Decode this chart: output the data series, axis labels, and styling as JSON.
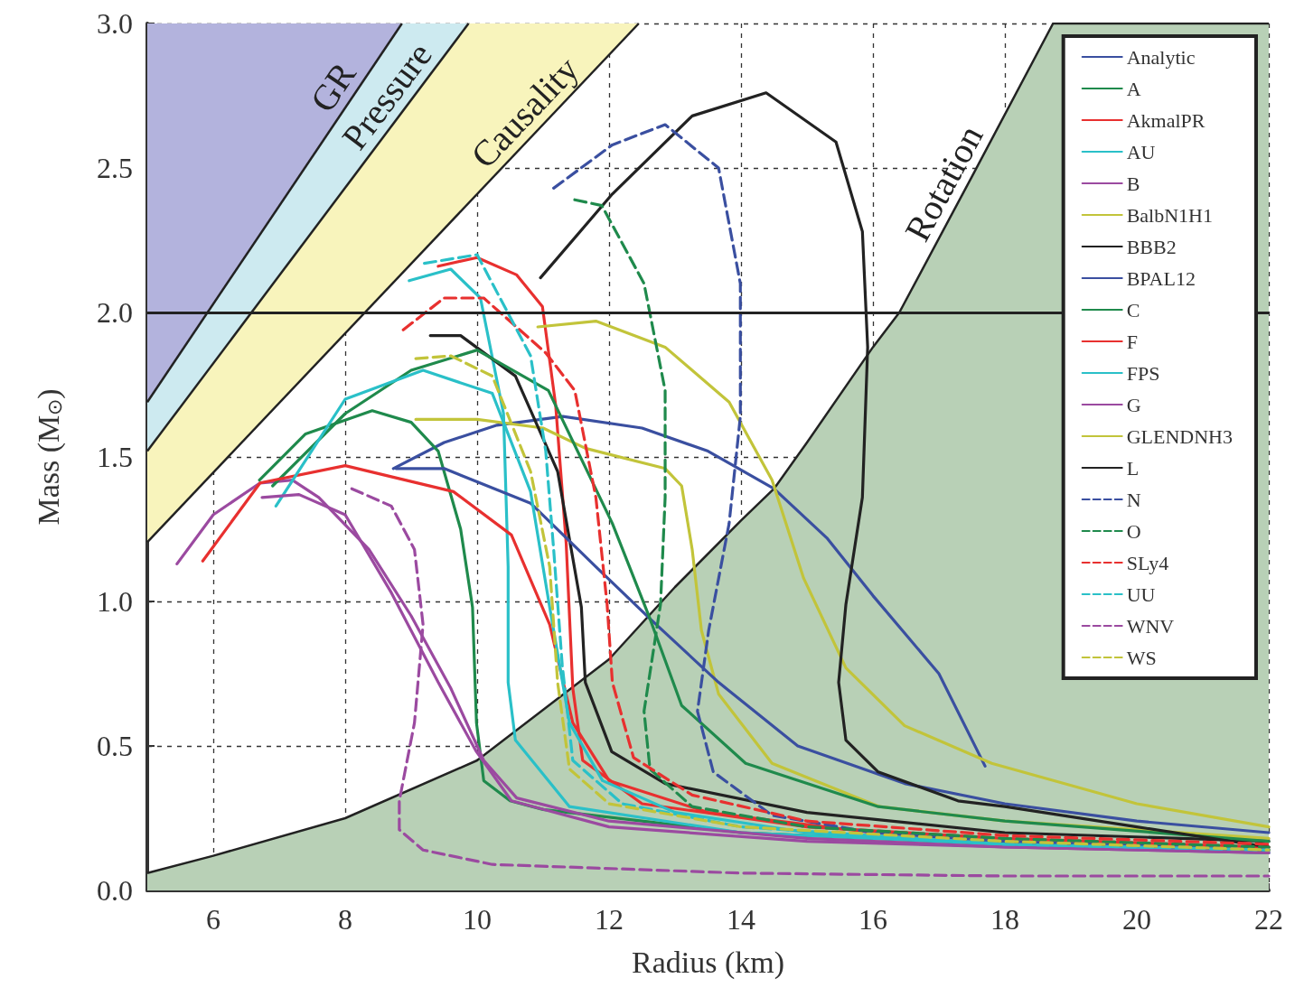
{
  "chart_data": {
    "type": "line",
    "xlabel": "Radius (km)",
    "ylabel": "Mass (M$_{⊙}$)",
    "xlim": [
      5,
      22
    ],
    "xticks": [
      6,
      8,
      10,
      12,
      14,
      16,
      18,
      20,
      22
    ],
    "ylim": [
      0,
      3
    ],
    "yticks": [
      {
        "value": 0,
        "label": "0.0"
      },
      {
        "value": 0.5,
        "label": "0.5"
      },
      {
        "value": 1,
        "label": "1.0"
      },
      {
        "value": 1.5,
        "label": "1.5"
      },
      {
        "value": 2,
        "label": "2.0"
      },
      {
        "value": 2.5,
        "label": "2.5"
      },
      {
        "value": 3,
        "label": "3.0"
      }
    ],
    "grid": true,
    "legend": "top right",
    "marker": "none",
    "ref_lines": [
      {
        "axis": "y",
        "value": 2.0,
        "color": "#222222"
      }
    ],
    "series": [
      {
        "type": "area",
        "name": "Causality",
        "color": "#f8f4bc",
        "x": [
          5,
          12.45
        ],
        "values": [
          1.205,
          3.0
        ]
      },
      {
        "type": "area",
        "name": "Pressure",
        "color": "#cdeaf0",
        "x": [
          5,
          9.87
        ],
        "values": [
          1.52,
          3.0
        ]
      },
      {
        "type": "area",
        "name": "GR",
        "color": "#b3b3dd",
        "x": [
          5,
          8.86
        ],
        "values": [
          1.69,
          3.0
        ]
      },
      {
        "type": "area",
        "name": "Rotation",
        "color": "#b8d0b6",
        "x": [
          5,
          6,
          8,
          10,
          12,
          13,
          14,
          14.5,
          15,
          16,
          16.4,
          17.5,
          18.73,
          22
        ],
        "values": [
          0.06,
          0.12,
          0.25,
          0.45,
          0.8,
          1.05,
          1.28,
          1.39,
          1.55,
          1.88,
          2.0,
          2.47,
          3.0,
          3.0
        ]
      },
      {
        "name": "Analytic",
        "color": "#3a4fa0",
        "x": [
          8.73,
          9.5,
          10.3,
          11.3,
          12.5,
          13.5,
          14.5,
          15.3,
          16,
          17,
          17.7
        ],
        "values": [
          1.46,
          1.55,
          1.61,
          1.64,
          1.6,
          1.52,
          1.39,
          1.22,
          1.02,
          0.75,
          0.43
        ]
      },
      {
        "name": "A",
        "color": "#1f8a4c",
        "x": [
          6.7,
          7.4,
          8.41,
          9.0,
          9.41,
          9.75,
          9.93,
          9.99,
          10.1,
          10.5,
          11,
          14,
          18,
          22
        ],
        "values": [
          1.42,
          1.58,
          1.66,
          1.62,
          1.52,
          1.25,
          0.98,
          0.58,
          0.38,
          0.31,
          0.28,
          0.2,
          0.16,
          0.14
        ]
      },
      {
        "name": "AkmalPR",
        "color": "#e8302f",
        "x": [
          9.41,
          10.0,
          10.6,
          10.99,
          11.19,
          11.35,
          11.45,
          11.6,
          12.5,
          15,
          18,
          22
        ],
        "values": [
          2.16,
          2.19,
          2.13,
          2.02,
          1.68,
          1.2,
          0.7,
          0.45,
          0.3,
          0.22,
          0.18,
          0.15
        ]
      },
      {
        "name": "AU",
        "color": "#2ac0c8",
        "x": [
          8.97,
          9.6,
          10.05,
          10.4,
          10.47,
          10.47,
          10.58,
          11.4,
          14,
          18,
          22
        ],
        "values": [
          2.11,
          2.15,
          2.05,
          1.65,
          1.12,
          0.72,
          0.52,
          0.29,
          0.2,
          0.16,
          0.14
        ]
      },
      {
        "name": "B",
        "color": "#9b4aa0",
        "x": [
          5.45,
          6.0,
          6.71,
          7.2,
          7.6,
          8.36,
          9.0,
          9.6,
          10.1,
          10.6,
          12,
          15,
          18,
          22
        ],
        "values": [
          1.13,
          1.3,
          1.41,
          1.42,
          1.36,
          1.18,
          0.95,
          0.7,
          0.45,
          0.32,
          0.24,
          0.18,
          0.15,
          0.13
        ]
      },
      {
        "name": "BalbN1H1",
        "color": "#c2c43a",
        "x": [
          9.07,
          10,
          11,
          11.64,
          12.85,
          13.1,
          13.26,
          13.4,
          13.66,
          14.47,
          16.1,
          18,
          22
        ],
        "values": [
          1.63,
          1.63,
          1.6,
          1.53,
          1.46,
          1.4,
          1.18,
          0.9,
          0.68,
          0.44,
          0.29,
          0.24,
          0.18
        ]
      },
      {
        "name": "BBB2",
        "color": "#222222",
        "x": [
          9.29,
          9.75,
          10.58,
          11.22,
          11.58,
          11.64,
          12.04,
          12.85,
          15,
          18,
          22
        ],
        "values": [
          1.92,
          1.92,
          1.78,
          1.45,
          0.98,
          0.72,
          0.48,
          0.37,
          0.27,
          0.2,
          0.17
        ]
      },
      {
        "name": "BPAL12",
        "color": "#3a4fa0",
        "x": [
          8.77,
          9.5,
          10.81,
          11.8,
          12.62,
          13.66,
          14.86,
          16.48,
          18,
          20,
          22
        ],
        "values": [
          1.46,
          1.46,
          1.34,
          1.12,
          0.94,
          0.72,
          0.5,
          0.37,
          0.3,
          0.24,
          0.2
        ]
      },
      {
        "name": "C",
        "color": "#1f8a4c",
        "x": [
          6.9,
          8,
          9,
          10,
          11.08,
          12.05,
          12.62,
          13.1,
          14.07,
          16.08,
          18,
          22
        ],
        "values": [
          1.4,
          1.65,
          1.8,
          1.87,
          1.73,
          1.27,
          0.94,
          0.64,
          0.44,
          0.29,
          0.24,
          0.17
        ]
      },
      {
        "name": "F",
        "color": "#e8302f",
        "x": [
          5.84,
          6.71,
          8.0,
          9.64,
          10.52,
          11.1,
          11.45,
          12,
          13.5,
          16,
          18,
          22
        ],
        "values": [
          1.14,
          1.41,
          1.47,
          1.38,
          1.23,
          0.92,
          0.58,
          0.38,
          0.27,
          0.2,
          0.17,
          0.14
        ]
      },
      {
        "name": "FPS",
        "color": "#2ac0c8",
        "x": [
          6.95,
          8.0,
          9.18,
          10.23,
          10.81,
          11.1,
          11.4,
          11.9,
          13,
          15,
          18,
          22
        ],
        "values": [
          1.33,
          1.7,
          1.8,
          1.72,
          1.38,
          0.98,
          0.58,
          0.38,
          0.27,
          0.2,
          0.16,
          0.13
        ]
      },
      {
        "name": "G",
        "color": "#9b4aa0",
        "x": [
          6.74,
          7.3,
          8.0,
          8.7,
          9.41,
          9.99,
          10.52,
          12,
          15,
          18,
          22
        ],
        "values": [
          1.36,
          1.37,
          1.3,
          1.03,
          0.72,
          0.48,
          0.31,
          0.22,
          0.17,
          0.15,
          0.13
        ]
      },
      {
        "name": "GLENDNH3",
        "color": "#c2c43a",
        "x": [
          10.92,
          11.8,
          12.85,
          13.82,
          14.47,
          14.95,
          15.59,
          16.48,
          17.8,
          20,
          22
        ],
        "values": [
          1.95,
          1.97,
          1.88,
          1.69,
          1.42,
          1.08,
          0.77,
          0.57,
          0.44,
          0.3,
          0.22
        ]
      },
      {
        "name": "L",
        "color": "#222222",
        "x": [
          10.96,
          12.05,
          13.26,
          14.38,
          15.44,
          15.84,
          15.92,
          15.84,
          15.59,
          15.48,
          15.59,
          16.08,
          17.29,
          18,
          20,
          22
        ],
        "values": [
          2.12,
          2.41,
          2.68,
          2.76,
          2.59,
          2.28,
          1.88,
          1.36,
          0.99,
          0.72,
          0.52,
          0.41,
          0.31,
          0.29,
          0.22,
          0.15
        ]
      },
      {
        "name": "N",
        "color": "#3a4fa0",
        "line_style": "dashed",
        "x": [
          11.16,
          12.05,
          12.85,
          13.66,
          13.99,
          13.99,
          13.82,
          13.51,
          13.34,
          13.58,
          14.47,
          16,
          18,
          22
        ],
        "values": [
          2.43,
          2.58,
          2.65,
          2.5,
          2.1,
          1.64,
          1.27,
          0.9,
          0.62,
          0.41,
          0.26,
          0.2,
          0.17,
          0.14
        ]
      },
      {
        "name": "O",
        "color": "#1f8a4c",
        "line_style": "dashed",
        "x": [
          11.48,
          11.89,
          12.53,
          12.85,
          12.85,
          12.78,
          12.53,
          12.62,
          13.26,
          15,
          18,
          22
        ],
        "values": [
          2.39,
          2.37,
          2.1,
          1.73,
          1.36,
          0.99,
          0.62,
          0.42,
          0.29,
          0.22,
          0.18,
          0.15
        ]
      },
      {
        "name": "SLy4",
        "color": "#e8302f",
        "line_style": "dashed",
        "x": [
          8.88,
          9.5,
          10.1,
          11.04,
          11.48,
          11.8,
          11.97,
          12.05,
          12.37,
          13.26,
          15,
          18,
          22
        ],
        "values": [
          1.94,
          2.05,
          2.05,
          1.86,
          1.73,
          1.36,
          0.99,
          0.72,
          0.46,
          0.33,
          0.24,
          0.19,
          0.16
        ]
      },
      {
        "name": "UU",
        "color": "#2ac0c8",
        "line_style": "dashed",
        "x": [
          9.2,
          10.0,
          10.81,
          11.04,
          11.16,
          11.29,
          11.45,
          12.2,
          14,
          18,
          22
        ],
        "values": [
          2.17,
          2.2,
          1.85,
          1.52,
          1.18,
          0.78,
          0.45,
          0.3,
          0.22,
          0.16,
          0.14
        ]
      },
      {
        "name": "WNV",
        "color": "#9b4aa0",
        "line_style": "dashed",
        "x": [
          8.1,
          8.7,
          9.05,
          9.18,
          9.05,
          8.82,
          8.82,
          9.18,
          10.23,
          14,
          18,
          22
        ],
        "values": [
          1.39,
          1.33,
          1.18,
          0.92,
          0.58,
          0.31,
          0.21,
          0.14,
          0.09,
          0.06,
          0.05,
          0.05
        ]
      },
      {
        "name": "WS",
        "color": "#c2c43a",
        "line_style": "dashed",
        "x": [
          9.07,
          9.6,
          10.23,
          10.81,
          11.1,
          11.22,
          11.4,
          12,
          14,
          18,
          22
        ],
        "values": [
          1.84,
          1.85,
          1.78,
          1.45,
          1.12,
          0.72,
          0.42,
          0.3,
          0.22,
          0.17,
          0.14
        ]
      }
    ]
  }
}
